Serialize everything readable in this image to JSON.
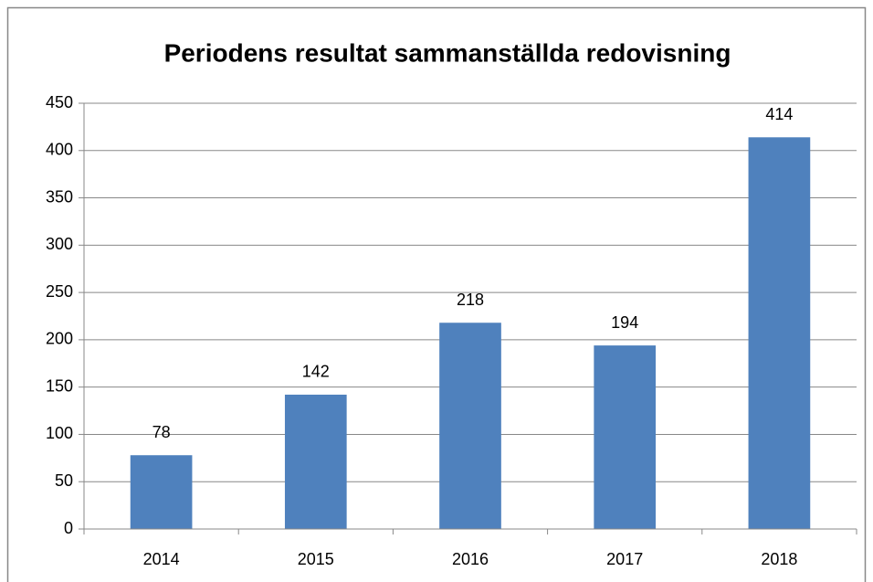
{
  "chart_data": {
    "type": "bar",
    "title": "Periodens resultat  sammanställda redovisning",
    "categories": [
      "2014",
      "2015",
      "2016",
      "2017",
      "2018"
    ],
    "values": [
      78,
      142,
      218,
      194,
      414
    ],
    "color": "#4f81bd",
    "ylim": [
      0,
      450
    ],
    "yticks": [
      0,
      50,
      100,
      150,
      200,
      250,
      300,
      350,
      400,
      450
    ],
    "grid": true
  }
}
